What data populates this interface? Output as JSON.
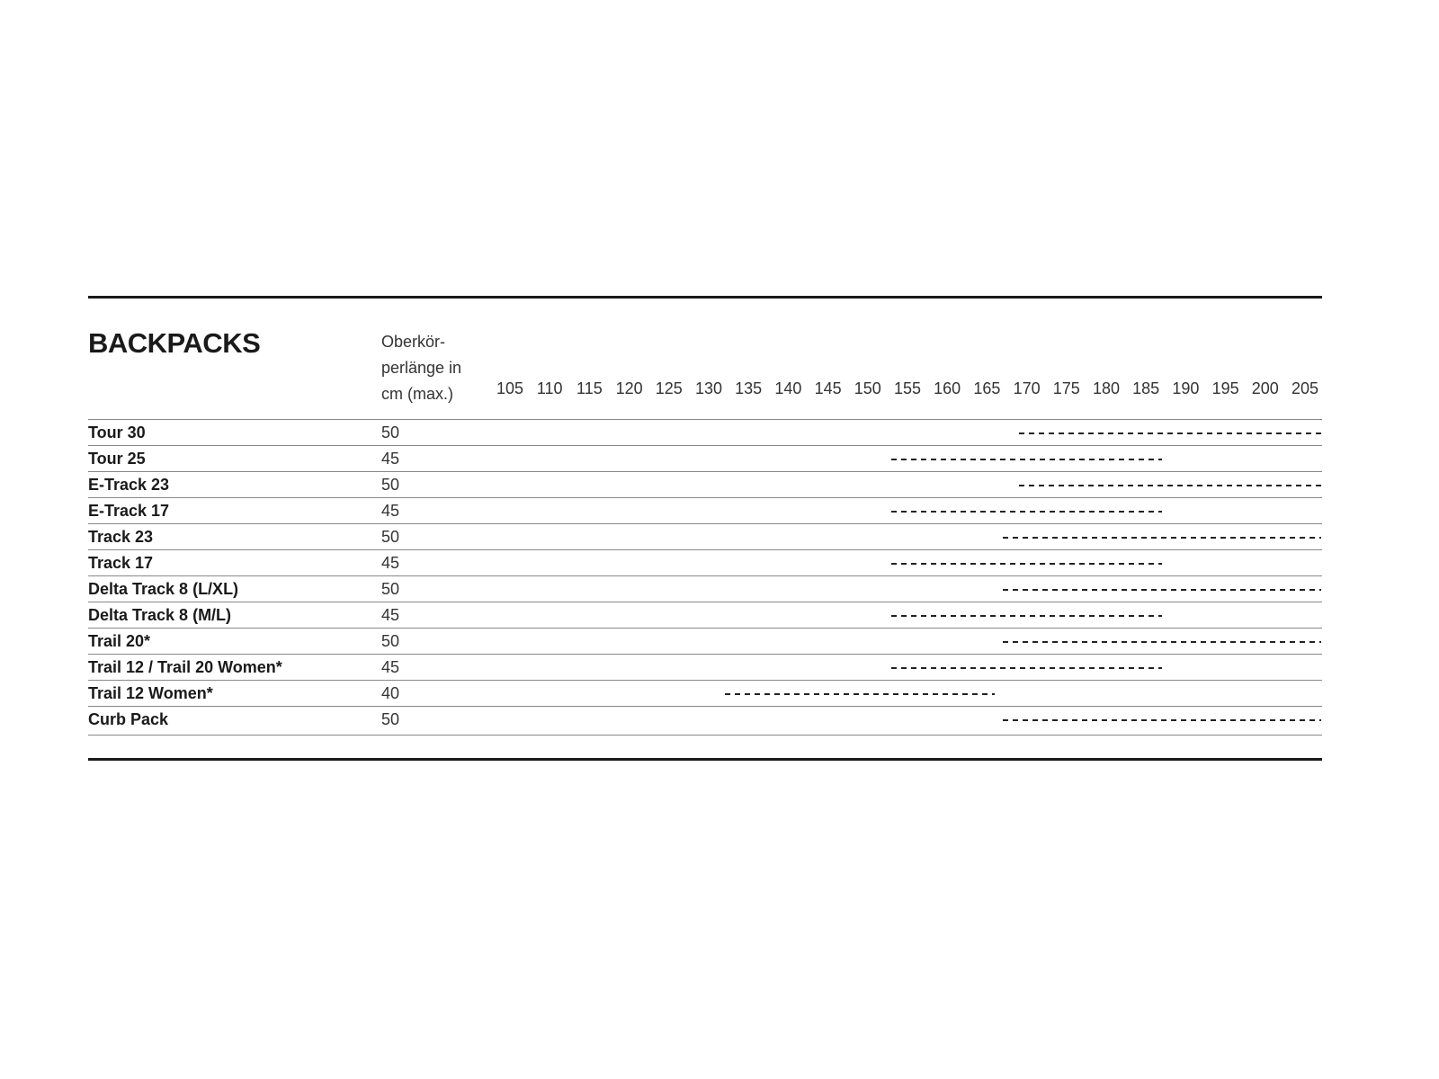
{
  "chart_data": {
    "type": "table",
    "title": "BACKPACKS",
    "column_header": "Oberkör- perlänge in cm (max.)",
    "column_header_lines": [
      "Oberkör-",
      "perlänge in",
      "cm (max.)"
    ],
    "scale_ticks": [
      105,
      110,
      115,
      120,
      125,
      130,
      135,
      140,
      145,
      150,
      155,
      160,
      165,
      170,
      175,
      180,
      185,
      190,
      195,
      200,
      205
    ],
    "rows": [
      {
        "name": "Tour 30",
        "max_torso_cm": "50",
        "range": [
          169,
          207
        ]
      },
      {
        "name": "Tour 25",
        "max_torso_cm": "45",
        "range": [
          153,
          187
        ]
      },
      {
        "name": "E-Track 23",
        "max_torso_cm": "50",
        "range": [
          169,
          207
        ]
      },
      {
        "name": "E-Track 17",
        "max_torso_cm": "45",
        "range": [
          153,
          187
        ]
      },
      {
        "name": "Track 23",
        "max_torso_cm": "50",
        "range": [
          167,
          207
        ]
      },
      {
        "name": "Track 17",
        "max_torso_cm": "45",
        "range": [
          153,
          187
        ]
      },
      {
        "name": "Delta Track 8 (L/XL)",
        "max_torso_cm": "50",
        "range": [
          167,
          207
        ]
      },
      {
        "name": "Delta Track 8 (M/L)",
        "max_torso_cm": "45",
        "range": [
          153,
          187
        ]
      },
      {
        "name": "Trail 20*",
        "max_torso_cm": "50",
        "range": [
          167,
          207
        ]
      },
      {
        "name": "Trail 12 / Trail 20 Women*",
        "max_torso_cm": "45",
        "range": [
          153,
          187
        ]
      },
      {
        "name": "Trail 12 Women*",
        "max_torso_cm": "40",
        "range": [
          132,
          166
        ]
      },
      {
        "name": "Curb Pack",
        "max_torso_cm": "50",
        "range": [
          167,
          207
        ]
      }
    ]
  }
}
